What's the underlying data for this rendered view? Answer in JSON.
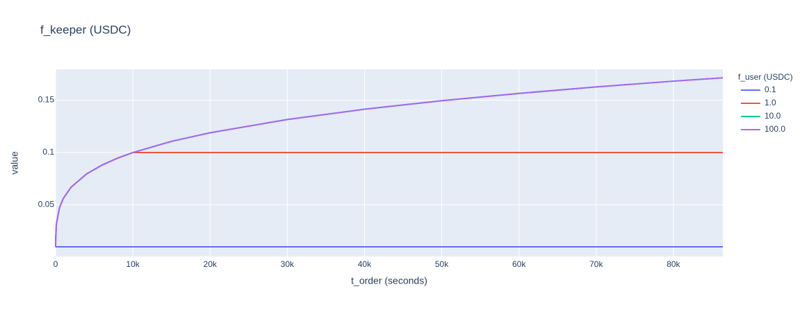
{
  "chart_data": {
    "type": "line",
    "title": "f_keeper (USDC)",
    "x_label": "t_order (seconds)",
    "y_label": "value",
    "legend_title": "f_user (USDC)",
    "x": [
      0,
      10,
      100,
      500,
      1000,
      2000,
      4000,
      6000,
      8000,
      10000,
      15000,
      20000,
      30000,
      40000,
      50000,
      60000,
      70000,
      80000,
      86400
    ],
    "series": [
      {
        "name": "0.1",
        "color": "#636efa",
        "values": [
          0.01,
          0.01,
          0.01,
          0.01,
          0.01,
          0.01,
          0.01,
          0.01,
          0.01,
          0.01,
          0.01,
          0.01,
          0.01,
          0.01,
          0.01,
          0.01,
          0.01,
          0.01,
          0.01
        ]
      },
      {
        "name": "1.0",
        "color": "#EF553B",
        "values": [
          0.01,
          0.0178,
          0.0316,
          0.0473,
          0.0562,
          0.0669,
          0.0795,
          0.088,
          0.0946,
          0.1,
          0.1,
          0.1,
          0.1,
          0.1,
          0.1,
          0.1,
          0.1,
          0.1,
          0.1
        ]
      },
      {
        "name": "10.0",
        "color": "#00cc96",
        "values": [
          0.01,
          0.0178,
          0.0316,
          0.0473,
          0.0562,
          0.0669,
          0.0795,
          0.088,
          0.0946,
          0.1,
          0.1107,
          0.1189,
          0.1316,
          0.1414,
          0.1495,
          0.1565,
          0.1627,
          0.1682,
          0.1714
        ]
      },
      {
        "name": "100.0",
        "color": "#ab63fa",
        "values": [
          0.01,
          0.0178,
          0.0316,
          0.0473,
          0.0562,
          0.0669,
          0.0795,
          0.088,
          0.0946,
          0.1,
          0.1107,
          0.1189,
          0.1316,
          0.1414,
          0.1495,
          0.1565,
          0.1627,
          0.1682,
          0.1714
        ]
      }
    ],
    "xlim": [
      0,
      86400
    ],
    "xticks": [
      0,
      {
        "value": 10000,
        "label": "10k"
      },
      {
        "value": 20000,
        "label": "20k"
      },
      {
        "value": 30000,
        "label": "30k"
      },
      {
        "value": 40000,
        "label": "40k"
      },
      {
        "value": 50000,
        "label": "50k"
      },
      {
        "value": 60000,
        "label": "60k"
      },
      {
        "value": 70000,
        "label": "70k"
      },
      {
        "value": 80000,
        "label": "80k"
      }
    ],
    "ylim": [
      0.0007,
      0.1795
    ],
    "yticks": [
      0.05,
      0.1,
      0.15
    ],
    "grid": true,
    "legend": "right"
  }
}
